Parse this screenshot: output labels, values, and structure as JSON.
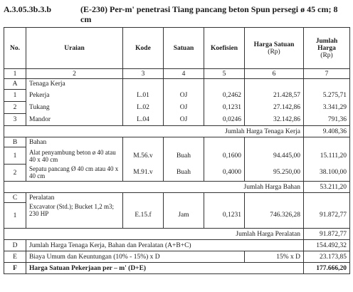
{
  "header": {
    "code": "A.3.05.3b.3.b",
    "title": "(E-230) Per-m' penetrasi Tiang pancang beton Spun persegi ø 45 cm; 8 cm"
  },
  "columns": {
    "no": "No.",
    "uraian": "Uraian",
    "kode": "Kode",
    "satuan": "Satuan",
    "koefisien": "Koefisien",
    "harga_satuan": "Harga Satuan",
    "harga_satuan_unit": "(Rp)",
    "jumlah_harga": "Jumlah Harga",
    "jumlah_harga_unit": "(Rp)"
  },
  "column_numbers": [
    "1",
    "2",
    "3",
    "4",
    "5",
    "6",
    "7"
  ],
  "sections": {
    "A": {
      "letter": "A",
      "title": "Tenaga Kerja",
      "rows": [
        {
          "no": "1",
          "uraian": "Pekerja",
          "kode": "L.01",
          "satuan": "OJ",
          "koefisien": "0,2462",
          "harga": "21.428,57",
          "jumlah": "5.275,71"
        },
        {
          "no": "2",
          "uraian": "Tukang",
          "kode": "L.02",
          "satuan": "OJ",
          "koefisien": "0,1231",
          "harga": "27.142,86",
          "jumlah": "3.341,29"
        },
        {
          "no": "3",
          "uraian": "Mandor",
          "kode": "L.04",
          "satuan": "OJ",
          "koefisien": "0,0246",
          "harga": "32.142,86",
          "jumlah": "791,36"
        }
      ],
      "total_label": "Jumlah Harga Tenaga Kerja",
      "total_value": "9.408,36"
    },
    "B": {
      "letter": "B",
      "title": "Bahan",
      "rows": [
        {
          "no": "1",
          "uraian": "Alat penyambung beton ø 40 atau 40 x 40 cm",
          "kode": "M.56.v",
          "satuan": "Buah",
          "koefisien": "0,1600",
          "harga": "94.445,00",
          "jumlah": "15.111,20"
        },
        {
          "no": "2",
          "uraian": "Sepatu pancang Ø 40 cm atau 40 x 40 cm",
          "kode": "M.91.v",
          "satuan": "Buah",
          "koefisien": "0,4000",
          "harga": "95.250,00",
          "jumlah": "38.100,00"
        }
      ],
      "total_label": "Jumlah Harga Bahan",
      "total_value": "53.211,20"
    },
    "C": {
      "letter": "C",
      "title": "Peralatan",
      "rows": [
        {
          "no": "1",
          "uraian": "Excavator (Std.); Bucket 1,2 m3; 230 HP",
          "kode": "E.15.f",
          "satuan": "Jam",
          "koefisien": "0,1231",
          "harga": "746.326,28",
          "jumlah": "91.872,77"
        }
      ],
      "total_label": "Jumlah Harga Peralatan",
      "total_value": "91.872,77"
    }
  },
  "summary": {
    "D": {
      "letter": "D",
      "label": "Jumlah Harga Tenaga Kerja, Bahan dan Peralatan (A+B+C)",
      "value": "154.492,32"
    },
    "E": {
      "letter": "E",
      "label": "Biaya Umum dan Keuntungan (10% - 15%) x D",
      "rate": "15% x D",
      "value": "23.173,85"
    },
    "F": {
      "letter": "F",
      "label": "Harga Satuan Pekerjaan per – m' (D+E)",
      "value": "177.666,20"
    }
  }
}
